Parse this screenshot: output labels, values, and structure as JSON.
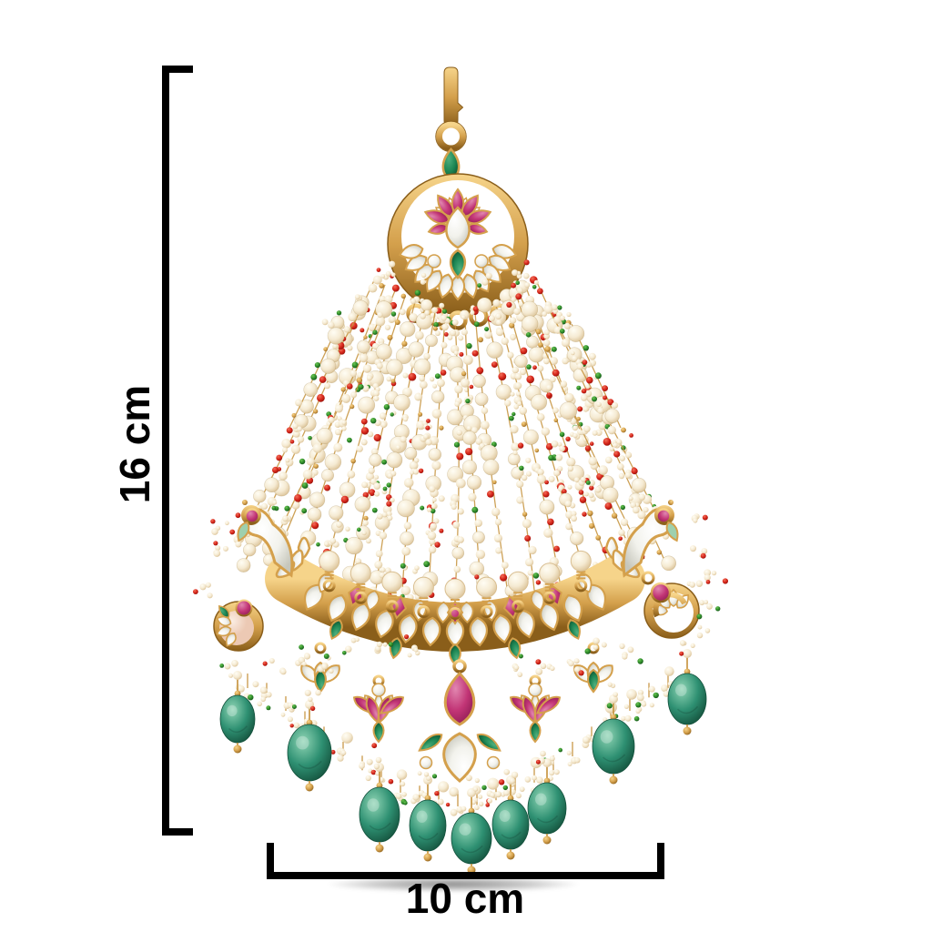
{
  "page": {
    "background": "#ffffff",
    "kind": "product-photo-with-dimension-annotations"
  },
  "dimensions": {
    "height": {
      "label": "16 cm",
      "orientation": "vertical",
      "side": "left"
    },
    "width": {
      "label": "10 cm",
      "orientation": "horizontal",
      "side": "bottom"
    },
    "line_color": "#000000",
    "label_color": "#000000"
  },
  "jewelry": {
    "alt": "Gold kundan jhoomar / passa head ornament: top hook and ring, crescent chand with pink lotus and white kundan tiles, wide fan of pearl strands with red, green and gold beads, kundan band with peacock motifs, pink and emerald stones in the fringe, and large green oval drop beads",
    "palette": {
      "gold_light": "#f6d48a",
      "gold": "#d4a04c",
      "gold_dark": "#8a5e1a",
      "gold_line": "#c49038",
      "pearl_hi": "#fffdf4",
      "pearl": "#f5ead2",
      "pearl_dk": "#d9bf92",
      "red_hi": "#f2705a",
      "red": "#d6251a",
      "red_dk": "#8e120b",
      "green_hi": "#6cc653",
      "green": "#2e8b2a",
      "green_dk": "#154f18",
      "pink_hi": "#e187b0",
      "pink": "#c23576",
      "pink_dk": "#8e1c53",
      "emerald_hi": "#4fb07f",
      "emerald": "#1d8653",
      "emerald_dk": "#0c4a2c",
      "drop_hi": "#8fd4b4",
      "drop": "#2e9072",
      "drop_dk": "#14513c",
      "kundan_hi": "#ffffff",
      "kundan": "#f2f2ec",
      "kundan_dk": "#c6c6bb",
      "mint": "#9ed0ae",
      "peach_hi": "#fbeee4",
      "peach": "#ecc9b4",
      "shadow": "rgba(0,0,0,0.4)"
    }
  }
}
